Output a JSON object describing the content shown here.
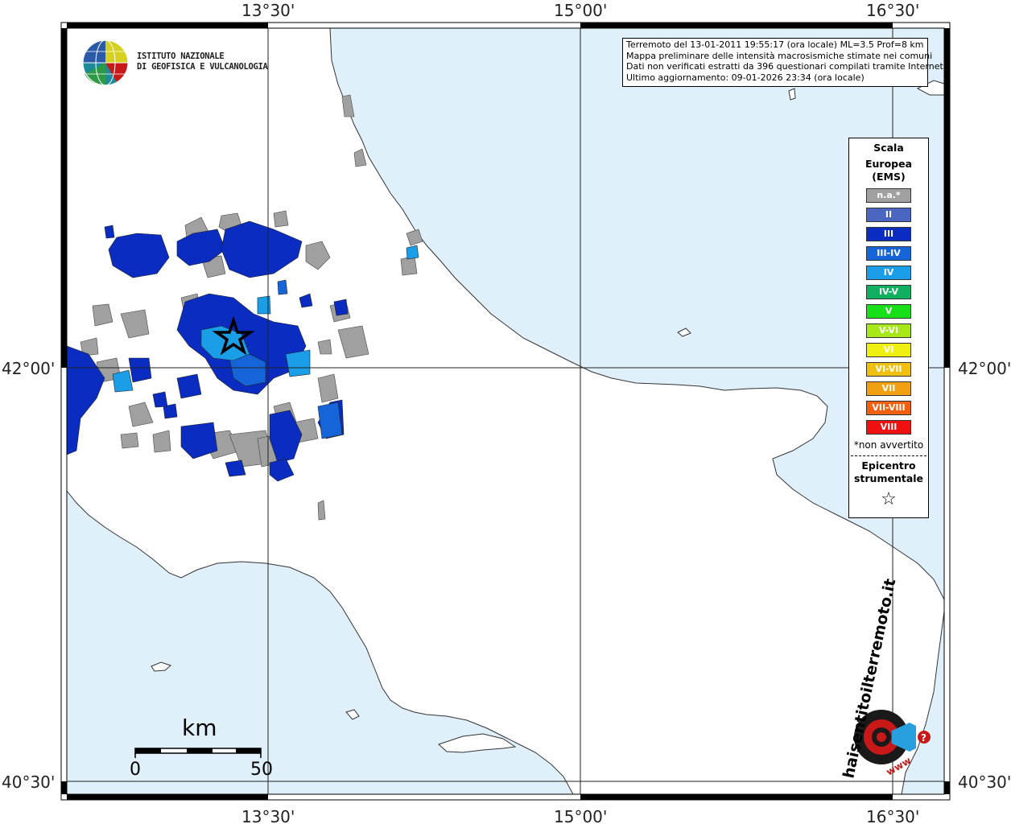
{
  "axes": {
    "top_labels": [
      "13°30'",
      "15°00'",
      "16°30'"
    ],
    "bottom_labels": [
      "13°30'",
      "15°00'",
      "16°30'"
    ],
    "left_labels": [
      "42°00'",
      "40°30'"
    ],
    "right_labels": [
      "42°00'",
      "40°30'"
    ]
  },
  "info": {
    "line1": "Terremoto del 13-01-2011 19:55:17 (ora locale) ML=3.5 Prof=8 km",
    "line2": "Mappa preliminare delle intensità macrosismiche stimate nei comuni",
    "line3": "Dati non verificati estratti da 396 questionari compilati tramite Internet.",
    "line4": "Ultimo aggiornamento: 09-01-2026 23:34 (ora locale)"
  },
  "logo": {
    "line1": "ISTITUTO NAZIONALE",
    "line2": "DI GEOFISICA E VULCANOLOGIA"
  },
  "legend": {
    "title1": "Scala",
    "title2": "Europea",
    "title3": "(EMS)",
    "items": [
      {
        "label": "n.a.*",
        "color": "#a0a0a0"
      },
      {
        "label": "II",
        "color": "#4a66c0"
      },
      {
        "label": "III",
        "color": "#0a2cc0"
      },
      {
        "label": "III-IV",
        "color": "#1565d8"
      },
      {
        "label": "IV",
        "color": "#1a9ee8"
      },
      {
        "label": "IV-V",
        "color": "#10b060"
      },
      {
        "label": "V",
        "color": "#18e018"
      },
      {
        "label": "V-VI",
        "color": "#a8e818"
      },
      {
        "label": "VI",
        "color": "#f0f010"
      },
      {
        "label": "VI-VII",
        "color": "#f0c010"
      },
      {
        "label": "VII",
        "color": "#f0a010"
      },
      {
        "label": "VII-VIII",
        "color": "#f06010"
      },
      {
        "label": "VIII",
        "color": "#f01010"
      }
    ],
    "note": "*non avvertito",
    "epicenter1": "Epicentro",
    "epicenter2": "strumentale",
    "star_symbol": "☆"
  },
  "scalebar": {
    "unit": "km",
    "min": "0",
    "max": "50"
  },
  "colors": {
    "sea": "#dff0fb",
    "land": "#ffffff",
    "na": "#a0a0a0",
    "iii": "#0a2cc0",
    "iii_iv": "#1565d8",
    "iv": "#1a9ee8"
  },
  "watermark": {
    "text": "haisentitoilterremoto.it",
    "url": "www"
  }
}
